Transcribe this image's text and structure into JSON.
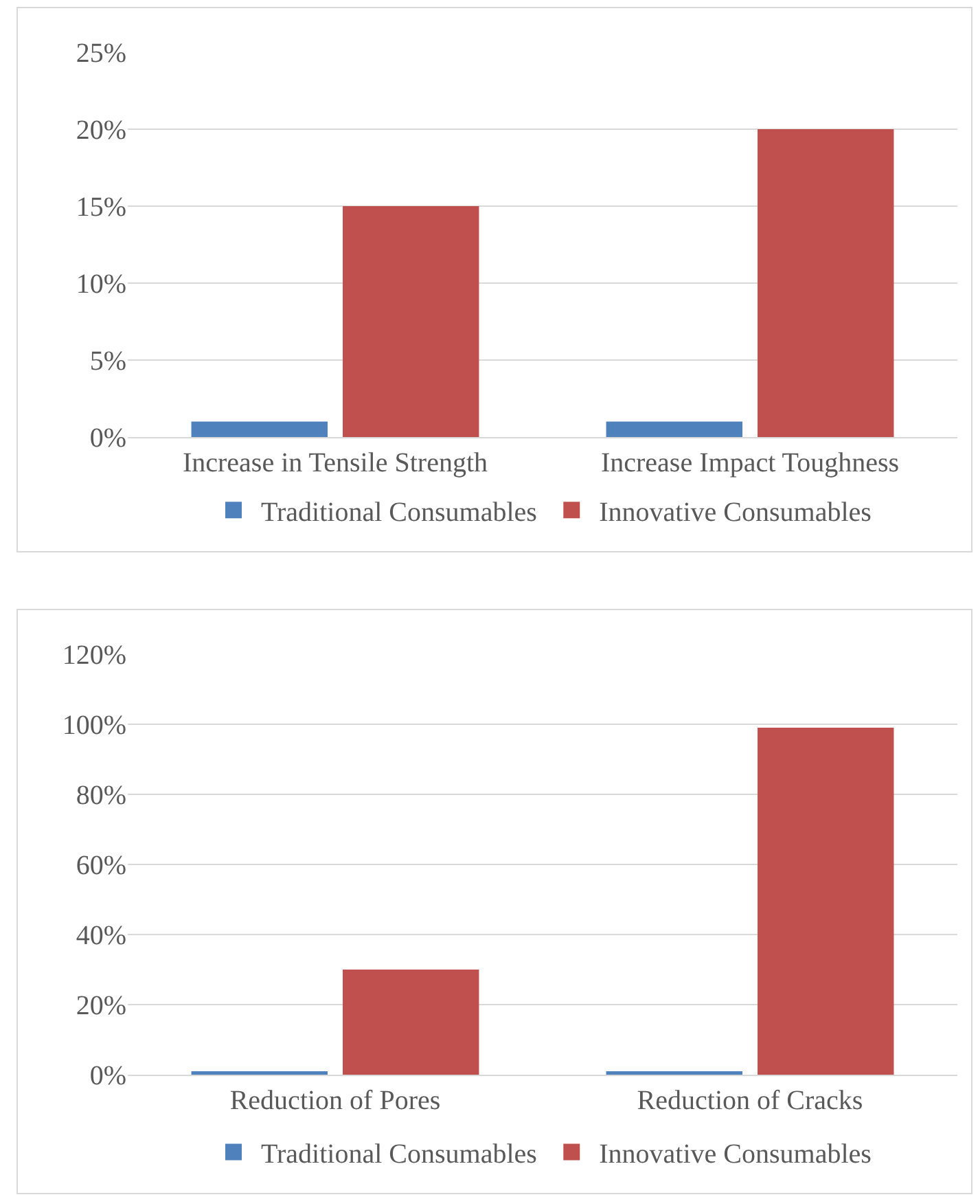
{
  "chart_data": [
    {
      "type": "bar",
      "categories": [
        "Increase in Tensile Strength",
        "Increase Impact Toughness"
      ],
      "series": [
        {
          "name": "Traditional Consumables",
          "color": "#4f81bd",
          "values": [
            1,
            1
          ]
        },
        {
          "name": "Innovative Consumables",
          "color": "#c0504d",
          "values": [
            15,
            20
          ]
        }
      ],
      "ylim": [
        0,
        25
      ],
      "yticks": [
        {
          "value": 0,
          "label": "0%"
        },
        {
          "value": 5,
          "label": "5%"
        },
        {
          "value": 10,
          "label": "10%"
        },
        {
          "value": 15,
          "label": "15%"
        },
        {
          "value": 20,
          "label": "20%"
        },
        {
          "value": 25,
          "label": "25%"
        }
      ],
      "grid": "y",
      "legend": "bottom"
    },
    {
      "type": "bar",
      "categories": [
        "Reduction of Pores",
        "Reduction of Cracks"
      ],
      "series": [
        {
          "name": "Traditional Consumables",
          "color": "#4f81bd",
          "values": [
            1,
            1
          ]
        },
        {
          "name": "Innovative Consumables",
          "color": "#c0504d",
          "values": [
            30,
            99
          ]
        }
      ],
      "ylim": [
        0,
        120
      ],
      "yticks": [
        {
          "value": 0,
          "label": "0%"
        },
        {
          "value": 20,
          "label": "20%"
        },
        {
          "value": 40,
          "label": "40%"
        },
        {
          "value": 60,
          "label": "60%"
        },
        {
          "value": 80,
          "label": "80%"
        },
        {
          "value": 100,
          "label": "100%"
        },
        {
          "value": 120,
          "label": "120%"
        }
      ],
      "grid": "y",
      "legend": "bottom"
    }
  ]
}
